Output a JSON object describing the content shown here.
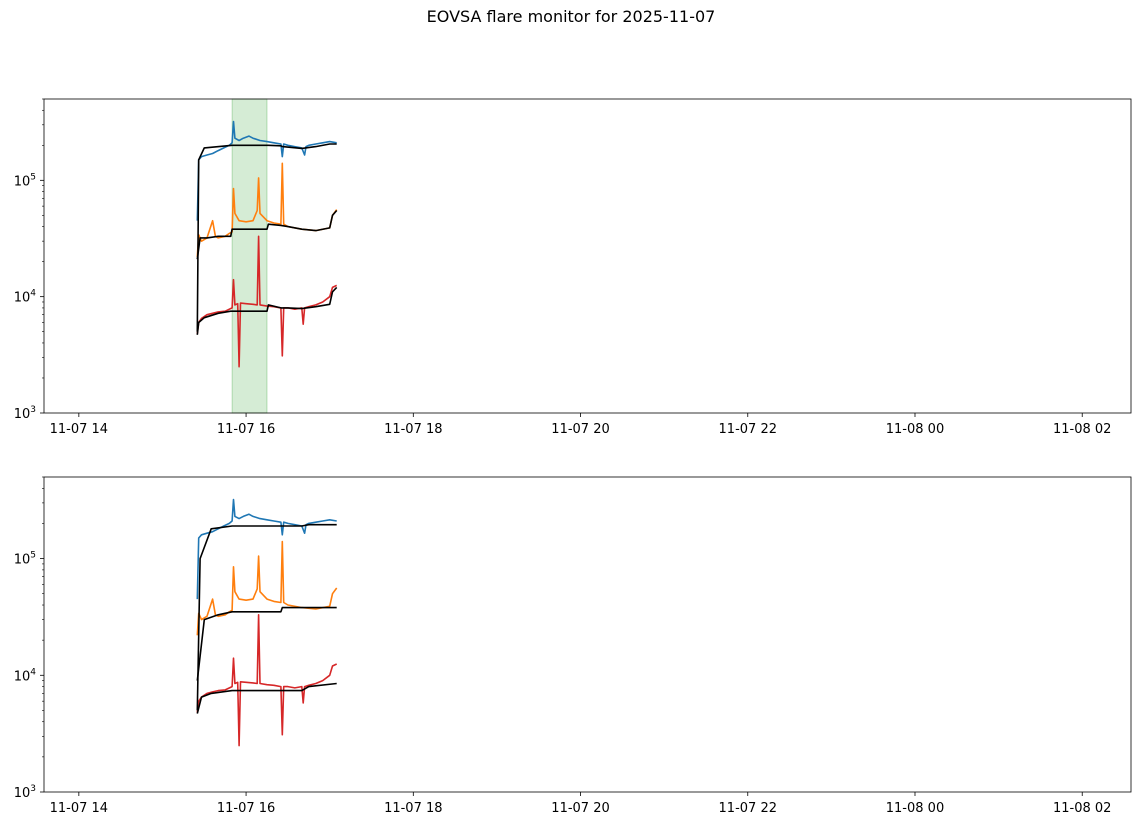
{
  "figure": {
    "title": "EOVSA flare monitor for 2025-11-07"
  },
  "colors": {
    "series_blue": "#1f77b4",
    "series_orange": "#ff7f0e",
    "series_red": "#d62728",
    "baseline": "#000000",
    "flare_shade": "#2ca02c"
  },
  "chart_data": [
    {
      "type": "line",
      "title": "",
      "xlabel": "",
      "ylabel": "",
      "yscale": "log",
      "ylim": [
        1000,
        500000
      ],
      "xlim": [
        "2025-11-07 13:35",
        "2025-11-08 02:35"
      ],
      "x_tick_labels": [
        "11-07 14",
        "11-07 16",
        "11-07 18",
        "11-07 20",
        "11-07 22",
        "11-08 00",
        "11-08 02"
      ],
      "y_tick_labels": [
        {
          "base": "10",
          "exp": "3"
        },
        {
          "base": "10",
          "exp": "4"
        },
        {
          "base": "10",
          "exp": "5"
        }
      ],
      "grid": false,
      "legend": "none",
      "shaded_spans": [
        {
          "start": "2025-11-07 15:50",
          "end": "2025-11-07 16:15",
          "color": "flare_shade"
        }
      ],
      "series": [
        {
          "color": "series_blue",
          "x": [
            "15:25",
            "15:26",
            "15:28",
            "15:32",
            "15:36",
            "15:40",
            "15:44",
            "15:48",
            "15:50",
            "15:51",
            "15:52",
            "15:55",
            "15:58",
            "16:02",
            "16:05",
            "16:10",
            "16:15",
            "16:20",
            "16:25",
            "16:26",
            "16:27",
            "16:30",
            "16:35",
            "16:40",
            "16:42",
            "16:43",
            "16:45",
            "16:50",
            "16:55",
            "17:00",
            "17:05"
          ],
          "y": [
            45000,
            150000,
            160000,
            165000,
            170000,
            180000,
            190000,
            200000,
            210000,
            320000,
            230000,
            220000,
            230000,
            240000,
            230000,
            220000,
            215000,
            210000,
            205000,
            160000,
            205000,
            200000,
            195000,
            190000,
            165000,
            195000,
            200000,
            205000,
            210000,
            215000,
            210000
          ]
        },
        {
          "color": "series_orange",
          "x": [
            "15:25",
            "15:26",
            "15:28",
            "15:32",
            "15:36",
            "15:38",
            "15:40",
            "15:45",
            "15:48",
            "15:50",
            "15:51",
            "15:52",
            "15:55",
            "16:00",
            "16:05",
            "16:08",
            "16:09",
            "16:10",
            "16:15",
            "16:20",
            "16:25",
            "16:26",
            "16:27",
            "16:30",
            "16:40",
            "16:50",
            "17:00",
            "17:02",
            "17:05"
          ],
          "y": [
            22000,
            34000,
            30000,
            32000,
            45000,
            33000,
            32000,
            33000,
            35000,
            36000,
            85000,
            52000,
            45000,
            44000,
            45000,
            55000,
            105000,
            52000,
            45000,
            43000,
            42000,
            140000,
            42000,
            40000,
            38000,
            37000,
            39000,
            50000,
            56000
          ]
        },
        {
          "color": "series_red",
          "x": [
            "15:25",
            "15:26",
            "15:28",
            "15:32",
            "15:36",
            "15:40",
            "15:45",
            "15:50",
            "15:51",
            "15:52",
            "15:54",
            "15:55",
            "15:56",
            "16:00",
            "16:05",
            "16:08",
            "16:09",
            "16:10",
            "16:15",
            "16:20",
            "16:25",
            "16:26",
            "16:27",
            "16:30",
            "16:35",
            "16:40",
            "16:41",
            "16:42",
            "16:45",
            "16:50",
            "16:55",
            "17:00",
            "17:02",
            "17:05"
          ],
          "y": [
            4800,
            6000,
            6500,
            7000,
            7200,
            7400,
            7500,
            8000,
            14000,
            8500,
            8700,
            2500,
            8800,
            8700,
            8600,
            8500,
            33000,
            8500,
            8300,
            8200,
            8000,
            3100,
            8000,
            8000,
            7800,
            8000,
            5800,
            8000,
            8200,
            8500,
            9000,
            10000,
            12000,
            12500
          ]
        },
        {
          "color": "baseline",
          "x": [
            "15:25",
            "15:26",
            "15:30",
            "15:50",
            "16:15",
            "16:16",
            "16:25",
            "16:26",
            "16:40",
            "16:50",
            "17:00",
            "17:05"
          ],
          "y": [
            5000,
            150000,
            190000,
            200000,
            200000,
            200000,
            198000,
            195000,
            188000,
            195000,
            205000,
            205000
          ]
        },
        {
          "color": "baseline",
          "x": [
            "15:25",
            "15:27",
            "15:32",
            "15:40",
            "15:49",
            "15:50",
            "16:15",
            "16:16",
            "16:25",
            "16:30",
            "16:40",
            "16:50",
            "17:00",
            "17:02",
            "17:05"
          ],
          "y": [
            21000,
            32000,
            32000,
            33000,
            33000,
            38000,
            38000,
            42000,
            41000,
            40000,
            38000,
            37000,
            39000,
            50000,
            55000
          ]
        },
        {
          "color": "baseline",
          "x": [
            "15:25",
            "15:26",
            "15:30",
            "15:40",
            "15:49",
            "15:50",
            "16:15",
            "16:16",
            "16:25",
            "16:30",
            "16:40",
            "16:50",
            "17:00",
            "17:02",
            "17:05"
          ],
          "y": [
            4700,
            6000,
            6600,
            7200,
            7500,
            7500,
            7500,
            8500,
            8000,
            8000,
            7900,
            8200,
            8600,
            11000,
            12000
          ]
        }
      ]
    },
    {
      "type": "line",
      "title": "",
      "xlabel": "",
      "ylabel": "",
      "yscale": "log",
      "ylim": [
        1000,
        500000
      ],
      "xlim": [
        "2025-11-07 13:35",
        "2025-11-08 02:35"
      ],
      "x_tick_labels": [
        "11-07 14",
        "11-07 16",
        "11-07 18",
        "11-07 20",
        "11-07 22",
        "11-08 00",
        "11-08 02"
      ],
      "y_tick_labels": [
        {
          "base": "10",
          "exp": "3"
        },
        {
          "base": "10",
          "exp": "4"
        },
        {
          "base": "10",
          "exp": "5"
        }
      ],
      "grid": false,
      "legend": "none",
      "shaded_spans": [],
      "series": [
        {
          "color": "series_blue",
          "x": [
            "15:25",
            "15:26",
            "15:28",
            "15:32",
            "15:36",
            "15:40",
            "15:44",
            "15:48",
            "15:50",
            "15:51",
            "15:52",
            "15:55",
            "15:58",
            "16:02",
            "16:05",
            "16:10",
            "16:15",
            "16:20",
            "16:25",
            "16:26",
            "16:27",
            "16:30",
            "16:35",
            "16:40",
            "16:42",
            "16:43",
            "16:45",
            "16:50",
            "16:55",
            "17:00",
            "17:05"
          ],
          "y": [
            45000,
            150000,
            160000,
            165000,
            170000,
            180000,
            190000,
            200000,
            210000,
            320000,
            230000,
            220000,
            230000,
            240000,
            230000,
            220000,
            215000,
            210000,
            205000,
            160000,
            205000,
            200000,
            195000,
            190000,
            165000,
            195000,
            200000,
            205000,
            210000,
            215000,
            210000
          ]
        },
        {
          "color": "series_orange",
          "x": [
            "15:25",
            "15:26",
            "15:28",
            "15:32",
            "15:36",
            "15:38",
            "15:40",
            "15:45",
            "15:48",
            "15:50",
            "15:51",
            "15:52",
            "15:55",
            "16:00",
            "16:05",
            "16:08",
            "16:09",
            "16:10",
            "16:15",
            "16:20",
            "16:25",
            "16:26",
            "16:27",
            "16:30",
            "16:40",
            "16:50",
            "17:00",
            "17:02",
            "17:05"
          ],
          "y": [
            22000,
            34000,
            30000,
            32000,
            45000,
            33000,
            32000,
            33000,
            35000,
            36000,
            85000,
            52000,
            45000,
            44000,
            45000,
            55000,
            105000,
            52000,
            45000,
            43000,
            42000,
            140000,
            42000,
            40000,
            38000,
            37000,
            39000,
            50000,
            56000
          ]
        },
        {
          "color": "series_red",
          "x": [
            "15:25",
            "15:26",
            "15:28",
            "15:32",
            "15:36",
            "15:40",
            "15:45",
            "15:50",
            "15:51",
            "15:52",
            "15:54",
            "15:55",
            "15:56",
            "16:00",
            "16:05",
            "16:08",
            "16:09",
            "16:10",
            "16:15",
            "16:20",
            "16:25",
            "16:26",
            "16:27",
            "16:30",
            "16:35",
            "16:40",
            "16:41",
            "16:42",
            "16:45",
            "16:50",
            "16:55",
            "17:00",
            "17:02",
            "17:05"
          ],
          "y": [
            4800,
            6000,
            6500,
            7000,
            7200,
            7400,
            7500,
            8000,
            14000,
            8500,
            8700,
            2500,
            8800,
            8700,
            8600,
            8500,
            33000,
            8500,
            8300,
            8200,
            8000,
            3100,
            8000,
            8000,
            7800,
            8000,
            5800,
            8000,
            8200,
            8500,
            9000,
            10000,
            12000,
            12500
          ]
        },
        {
          "color": "baseline",
          "x": [
            "15:25",
            "15:27",
            "15:35",
            "15:50",
            "16:40",
            "16:45",
            "17:05"
          ],
          "y": [
            5000,
            100000,
            180000,
            190000,
            190000,
            195000,
            195000
          ]
        },
        {
          "color": "baseline",
          "x": [
            "15:25",
            "15:30",
            "15:40",
            "15:50",
            "16:25",
            "16:26",
            "16:40",
            "17:05"
          ],
          "y": [
            9000,
            30000,
            33000,
            35000,
            35000,
            38000,
            38000,
            38000
          ]
        },
        {
          "color": "baseline",
          "x": [
            "15:25",
            "15:28",
            "15:35",
            "15:50",
            "16:40",
            "16:45",
            "17:05"
          ],
          "y": [
            4700,
            6500,
            7000,
            7400,
            7400,
            8000,
            8500
          ]
        }
      ]
    }
  ]
}
